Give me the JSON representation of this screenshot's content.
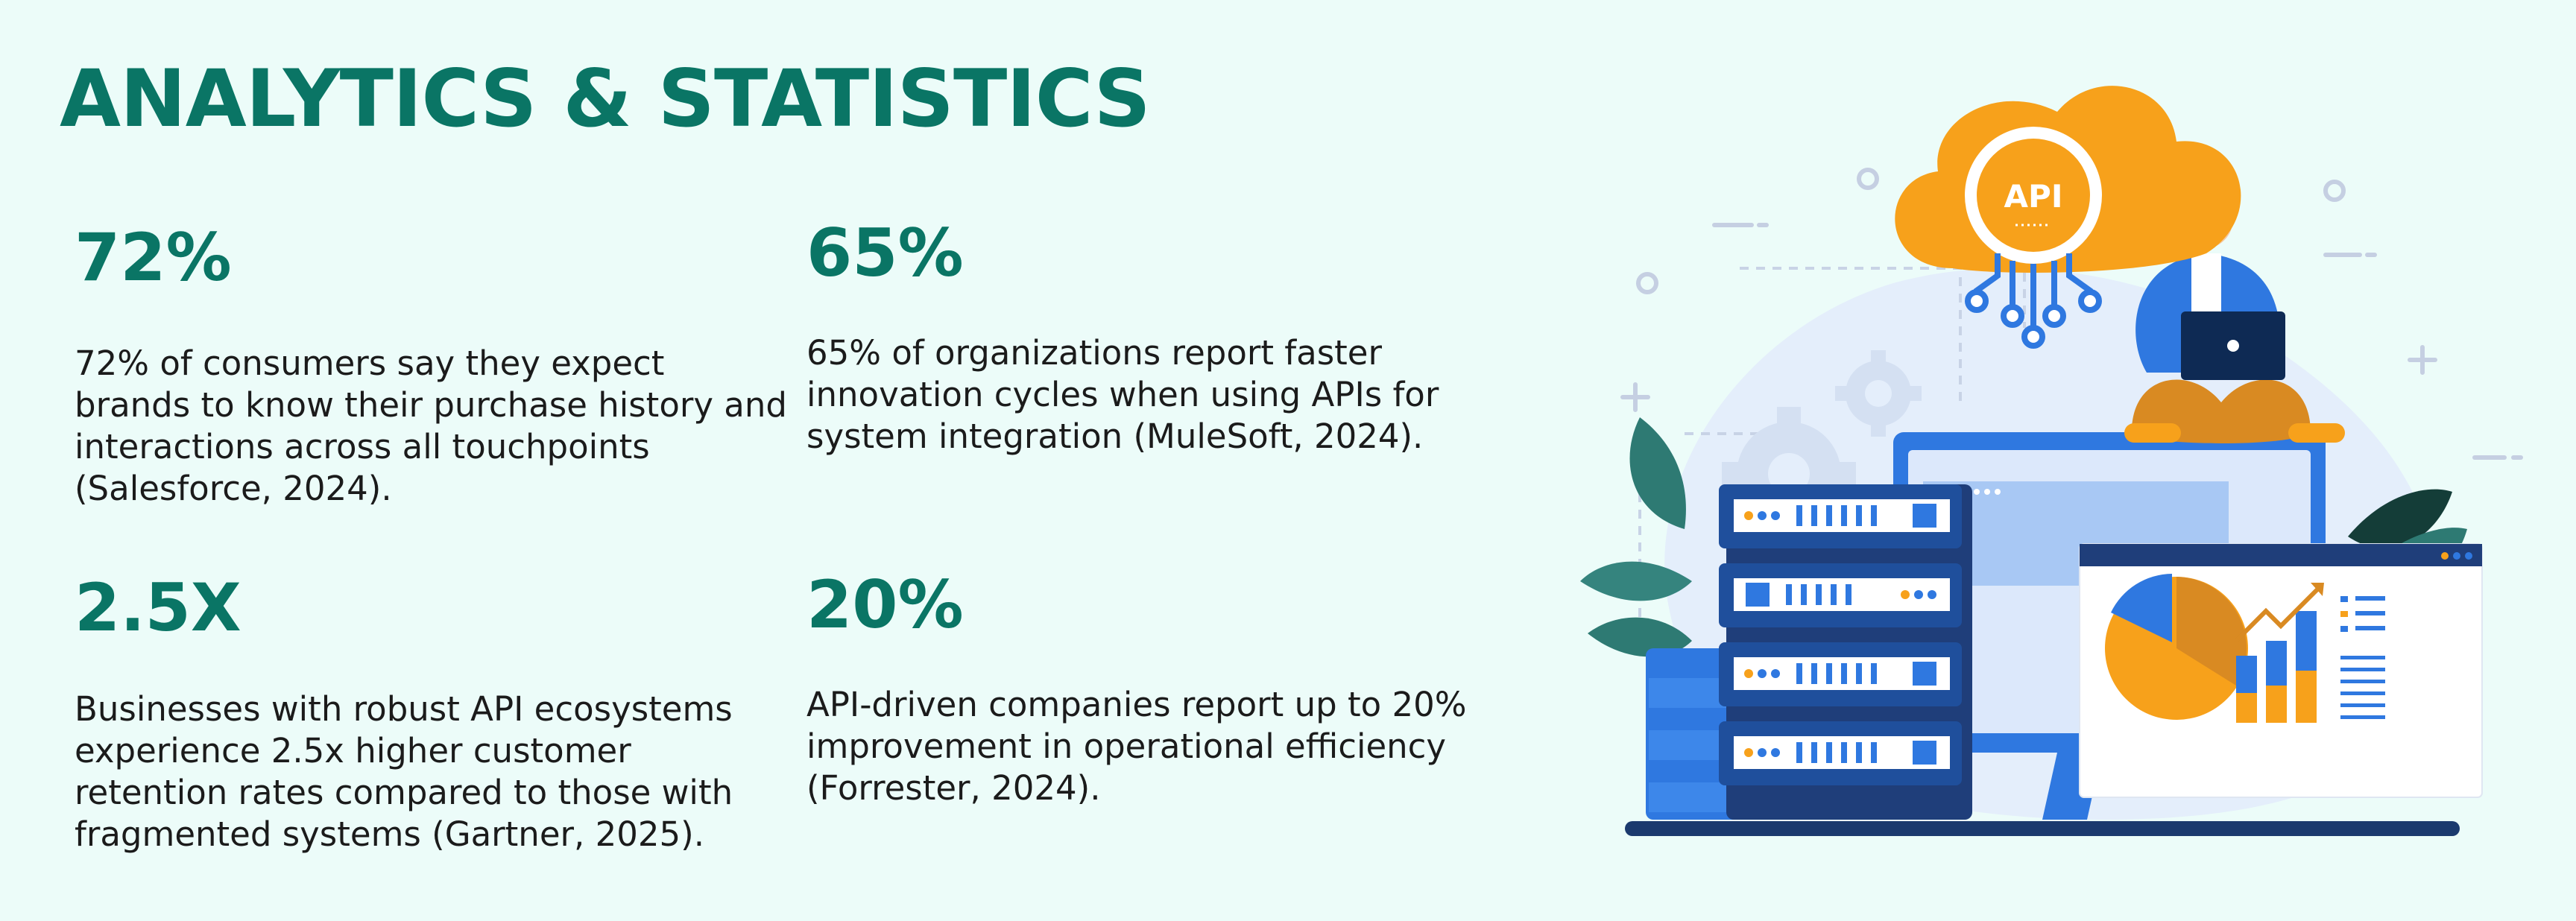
{
  "page": {
    "title": "ANALYTICS & STATISTICS"
  },
  "stats": [
    {
      "value": "72%",
      "text": "72% of consumers say they expect brands to know their purchase history and interactions across all touchpoints (Salesforce, 2024)."
    },
    {
      "value": "65%",
      "text": "65% of organizations report faster innovation cycles when using APIs for system integration (MuleSoft, 2024)."
    },
    {
      "value": "2.5X",
      "text": "Businesses with robust API ecosystems experience 2.5x higher customer retention rates compared to those with fragmented systems (Gartner, 2025)."
    },
    {
      "value": "20%",
      "text": "API-driven companies report up to 20% improvement in operational efficiency (Forrester, 2024)."
    }
  ],
  "illustration": {
    "cloud_label": "API",
    "colors": {
      "brand": "#0a7565",
      "orange": "#f7a11b",
      "blue": "#2f78e0",
      "navy": "#1f3e7a"
    }
  }
}
